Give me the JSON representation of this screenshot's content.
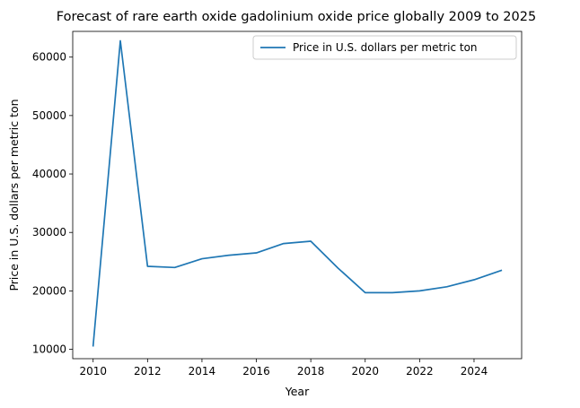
{
  "chart_data": {
    "type": "line",
    "title": "Forecast of rare earth oxide gadolinium oxide price globally 2009 to 2025",
    "xlabel": "Year",
    "ylabel": "Price in U.S. dollars per metric ton",
    "xlim": [
      2009.25,
      2025.75
    ],
    "ylim": [
      8400,
      64400
    ],
    "xticks": [
      2010,
      2012,
      2014,
      2016,
      2018,
      2020,
      2022,
      2024
    ],
    "yticks": [
      10000,
      20000,
      30000,
      40000,
      50000,
      60000
    ],
    "grid": false,
    "legend": {
      "position": "top-right"
    },
    "series": [
      {
        "name": "Price in U.S. dollars per metric ton",
        "color": "#1f77b4",
        "x": [
          2010,
          2011,
          2012,
          2013,
          2014,
          2015,
          2016,
          2017,
          2018,
          2019,
          2020,
          2021,
          2022,
          2023,
          2024,
          2025
        ],
        "y": [
          10600,
          62800,
          24200,
          24000,
          25500,
          26100,
          26500,
          28100,
          28500,
          23900,
          19700,
          19700,
          20000,
          20700,
          21900,
          23500
        ]
      }
    ]
  }
}
